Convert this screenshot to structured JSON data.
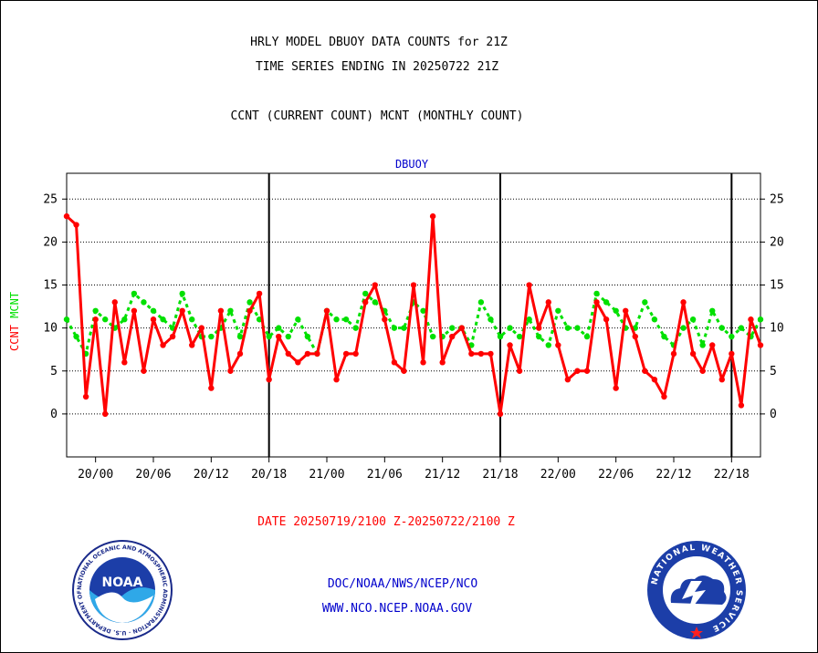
{
  "header": {
    "title_line1": "HRLY MODEL DBUOY DATA COUNTS for 21Z",
    "title_line2": "TIME SERIES ENDING IN 20250722 21Z",
    "legend_line": "CCNT (CURRENT COUNT) MCNT (MONTHLY COUNT)"
  },
  "colors": {
    "ccnt": "#ff0000",
    "mcnt": "#00e000",
    "blue_text": "#0000cc",
    "red_text": "#ff0000"
  },
  "chart_data": {
    "type": "line",
    "title": "DBUOY",
    "ylabel_ccnt": "CCNT",
    "ylabel_mcnt": "MCNT",
    "ylim": [
      -5,
      28
    ],
    "yticks": [
      0,
      5,
      10,
      15,
      20,
      25
    ],
    "ytick_labels": [
      "0",
      "5",
      "10",
      "15",
      "20",
      "25"
    ],
    "x_start_hour": 0,
    "x_end_hour": 72,
    "xticks": [
      3,
      9,
      15,
      21,
      27,
      33,
      39,
      45,
      51,
      57,
      63,
      69
    ],
    "xtick_labels": [
      "20/00",
      "20/06",
      "20/12",
      "20/18",
      "21/00",
      "21/06",
      "21/12",
      "21/18",
      "22/00",
      "22/06",
      "22/12",
      "22/18"
    ],
    "day_dividers": [
      21,
      45,
      69
    ],
    "grid": "horizontal dotted",
    "series": [
      {
        "name": "CCNT",
        "color": "#ff0000",
        "values": [
          23,
          22,
          2,
          11,
          0,
          13,
          6,
          12,
          5,
          11,
          8,
          9,
          12,
          8,
          10,
          3,
          12,
          5,
          7,
          12,
          14,
          4,
          9,
          7,
          6,
          7,
          7,
          12,
          4,
          7,
          7,
          13,
          15,
          11,
          6,
          5,
          15,
          6,
          23,
          6,
          9,
          10,
          7,
          7,
          7,
          0,
          8,
          5,
          15,
          10,
          13,
          8,
          4,
          5,
          5,
          13,
          11,
          3,
          12,
          9,
          5,
          4,
          2,
          7,
          13,
          7,
          5,
          8,
          4,
          7,
          1,
          11,
          8
        ]
      },
      {
        "name": "MCNT",
        "color": "#00e000",
        "values": [
          11,
          9,
          7,
          12,
          11,
          10,
          11,
          14,
          13,
          12,
          11,
          10,
          14,
          11,
          9,
          9,
          10,
          12,
          9,
          13,
          11,
          9,
          10,
          9,
          11,
          9,
          7,
          12,
          11,
          11,
          10,
          14,
          13,
          12,
          10,
          10,
          13,
          12,
          9,
          9,
          10,
          10,
          8,
          13,
          11,
          9,
          10,
          9,
          11,
          9,
          8,
          12,
          10,
          10,
          9,
          14,
          13,
          12,
          10,
          10,
          13,
          11,
          9,
          8,
          10,
          11,
          8,
          12,
          10,
          9,
          10,
          9,
          11
        ]
      }
    ]
  },
  "footer": {
    "date_range": "DATE 20250719/2100 Z-20250722/2100 Z",
    "org_path": "DOC/NOAA/NWS/NCEP/NCO",
    "website": "WWW.NCO.NCEP.NOAA.GOV",
    "noaa_logo_text": "NOAA",
    "noaa_ring_text": "NATIONAL OCEANIC AND ATMOSPHERIC ADMINISTRATION · U.S. DEPARTMENT OF COMMERCE ·",
    "nws_ring_text": "NATIONAL WEATHER SERVICE"
  }
}
